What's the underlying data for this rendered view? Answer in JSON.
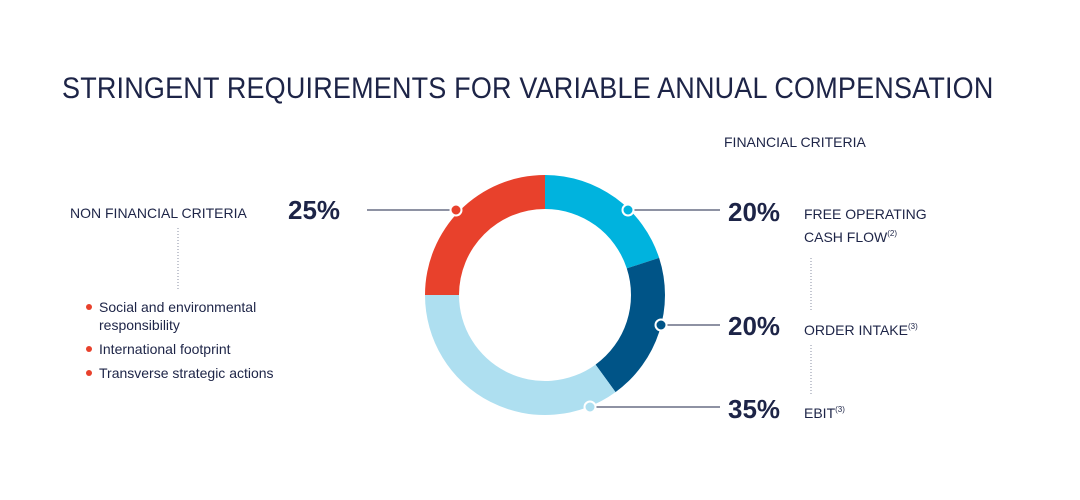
{
  "title": "STRINGENT REQUIREMENTS FOR VARIABLE ANNUAL COMPENSATION",
  "financial_header": "FINANCIAL CRITERIA",
  "non_financial": {
    "label": "NON FINANCIAL CRITERIA",
    "percent": "25%",
    "bullets": [
      "Social and environmental responsibility",
      "International footprint",
      "Transverse strategic actions"
    ]
  },
  "financial_items": [
    {
      "percent": "20%",
      "label_line1": "FREE OPERATING",
      "label_line2": "CASH FLOW",
      "note": "(2)"
    },
    {
      "percent": "20%",
      "label_line1": "ORDER INTAKE",
      "note": "(3)"
    },
    {
      "percent": "35%",
      "label_line1": "EBIT",
      "note": "(3)"
    }
  ],
  "chart_data": {
    "type": "pie",
    "donut": true,
    "start": "top, clockwise",
    "slices": [
      {
        "name": "FREE OPERATING CASH FLOW",
        "value": 20,
        "color": "#00b3de"
      },
      {
        "name": "ORDER INTAKE",
        "value": 20,
        "color": "#005487"
      },
      {
        "name": "EBIT",
        "value": 35,
        "color": "#aedff0"
      },
      {
        "name": "NON FINANCIAL CRITERIA",
        "value": 25,
        "color": "#e8412c"
      }
    ]
  },
  "colors": {
    "text": "#1d2447",
    "accent": "#e8412c",
    "connector": "#1d2447"
  }
}
